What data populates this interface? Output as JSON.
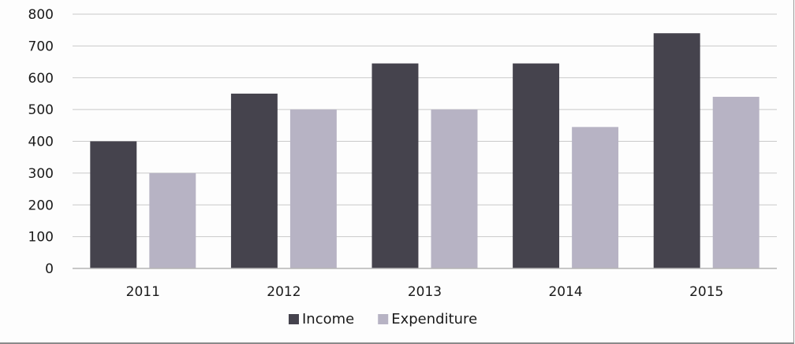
{
  "chart_data": {
    "type": "bar",
    "categories": [
      "2011",
      "2012",
      "2013",
      "2014",
      "2015"
    ],
    "series": [
      {
        "name": "Income",
        "values": [
          400,
          550,
          645,
          645,
          740
        ]
      },
      {
        "name": "Expenditure",
        "values": [
          300,
          500,
          500,
          445,
          540
        ]
      }
    ],
    "title": "",
    "xlabel": "",
    "ylabel": "",
    "ylim": [
      0,
      800
    ],
    "yticks": [
      "0",
      "100",
      "200",
      "300",
      "400",
      "500",
      "600",
      "700",
      "800"
    ],
    "grid": true,
    "legend_position": "bottom-center",
    "colors": {
      "Income": "#45434d",
      "Expenditure": "#b7b3c4",
      "grid": "#c9c9c9",
      "axis": "#b5b5b5"
    }
  }
}
